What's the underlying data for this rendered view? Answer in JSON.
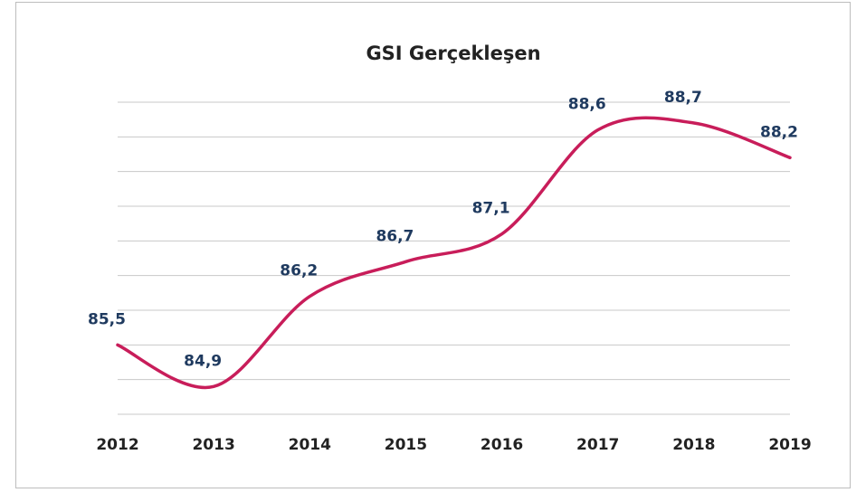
{
  "chart_data": {
    "type": "line",
    "title": "GSI Gerçekleşen",
    "categories": [
      "2012",
      "2013",
      "2014",
      "2015",
      "2016",
      "2017",
      "2018",
      "2019"
    ],
    "series": [
      {
        "name": "GSI",
        "color": "#c81d5a",
        "values": [
          85.5,
          84.9,
          86.2,
          86.7,
          87.1,
          88.6,
          88.7,
          88.2
        ],
        "value_labels": [
          "85,5",
          "84,9",
          "86,2",
          "86,7",
          "87,1",
          "88,6",
          "88,7",
          "88,2"
        ]
      }
    ],
    "ylim": [
      84.5,
      89
    ],
    "yticks": [
      84.5,
      85,
      85.5,
      86,
      86.5,
      87,
      87.5,
      88,
      88.5,
      89
    ],
    "grid": true
  }
}
